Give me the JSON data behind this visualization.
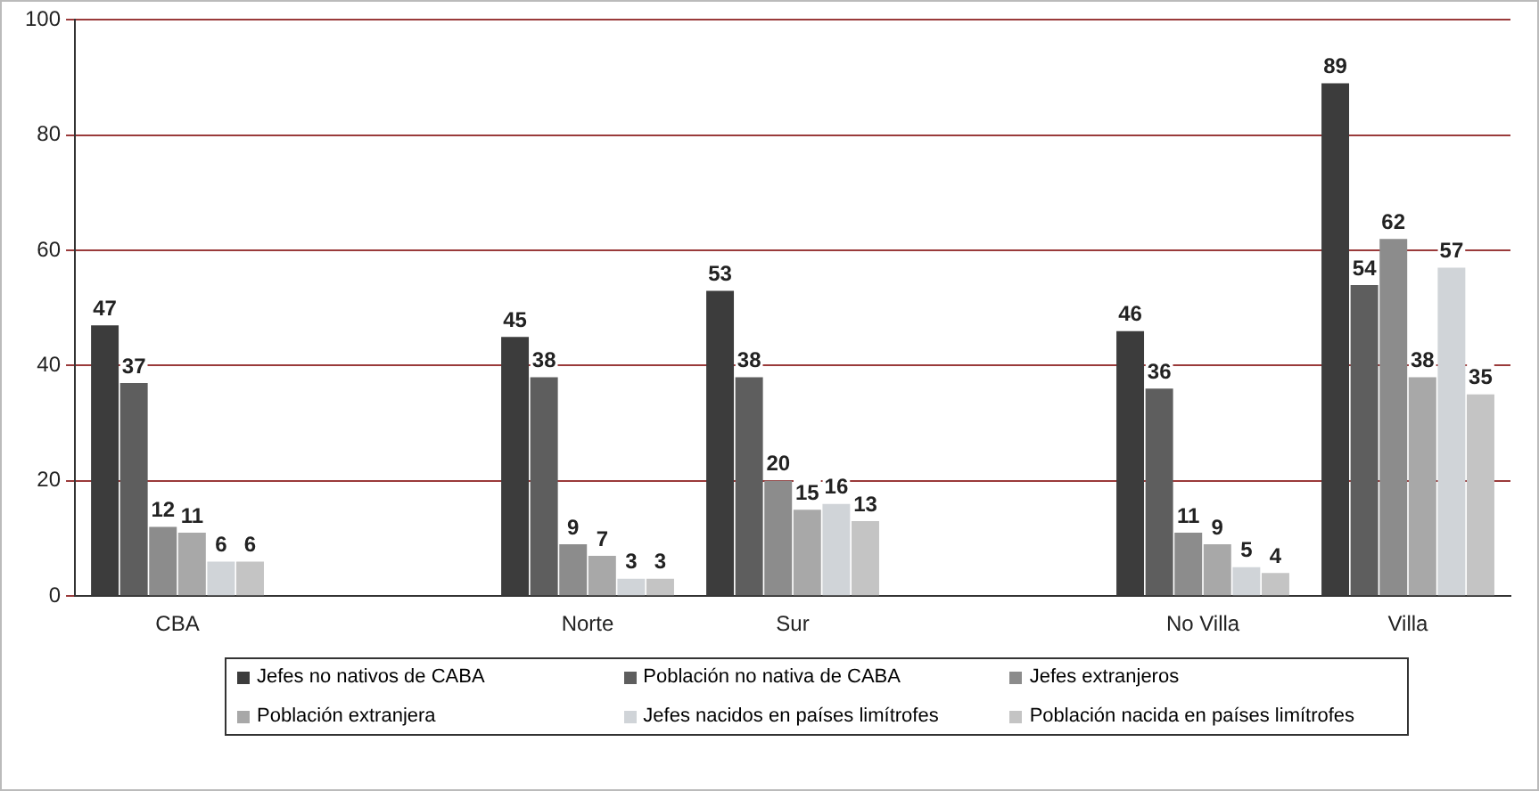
{
  "chart_data": {
    "type": "bar",
    "categories": [
      "CBA",
      null,
      "Norte",
      "Sur",
      null,
      "No Villa",
      "Villa"
    ],
    "series": [
      {
        "name": "Jefes no nativos de CABA",
        "color": "#3c3c3c",
        "values": [
          47,
          null,
          45,
          53,
          null,
          46,
          89
        ]
      },
      {
        "name": "Población no nativa de CABA",
        "color": "#5e5e5e",
        "values": [
          37,
          null,
          38,
          38,
          null,
          36,
          54
        ]
      },
      {
        "name": "Jefes extranjeros",
        "color": "#8c8c8c",
        "values": [
          12,
          null,
          9,
          20,
          null,
          11,
          62
        ]
      },
      {
        "name": "Población extranjera",
        "color": "#a8a8a8",
        "values": [
          11,
          null,
          7,
          15,
          null,
          9,
          38
        ]
      },
      {
        "name": "Jefes nacidos en países limítrofes",
        "color": "#d0d4d8",
        "values": [
          6,
          null,
          3,
          16,
          null,
          5,
          57
        ]
      },
      {
        "name": "Población nacida en países limítrofes",
        "color": "#c4c4c4",
        "values": [
          6,
          null,
          3,
          13,
          null,
          4,
          35
        ]
      }
    ],
    "ylim": [
      0,
      100
    ],
    "yticks": [
      0,
      20,
      40,
      60,
      80,
      100
    ],
    "grid": "y",
    "legend": "bottom",
    "data_labels": true
  }
}
